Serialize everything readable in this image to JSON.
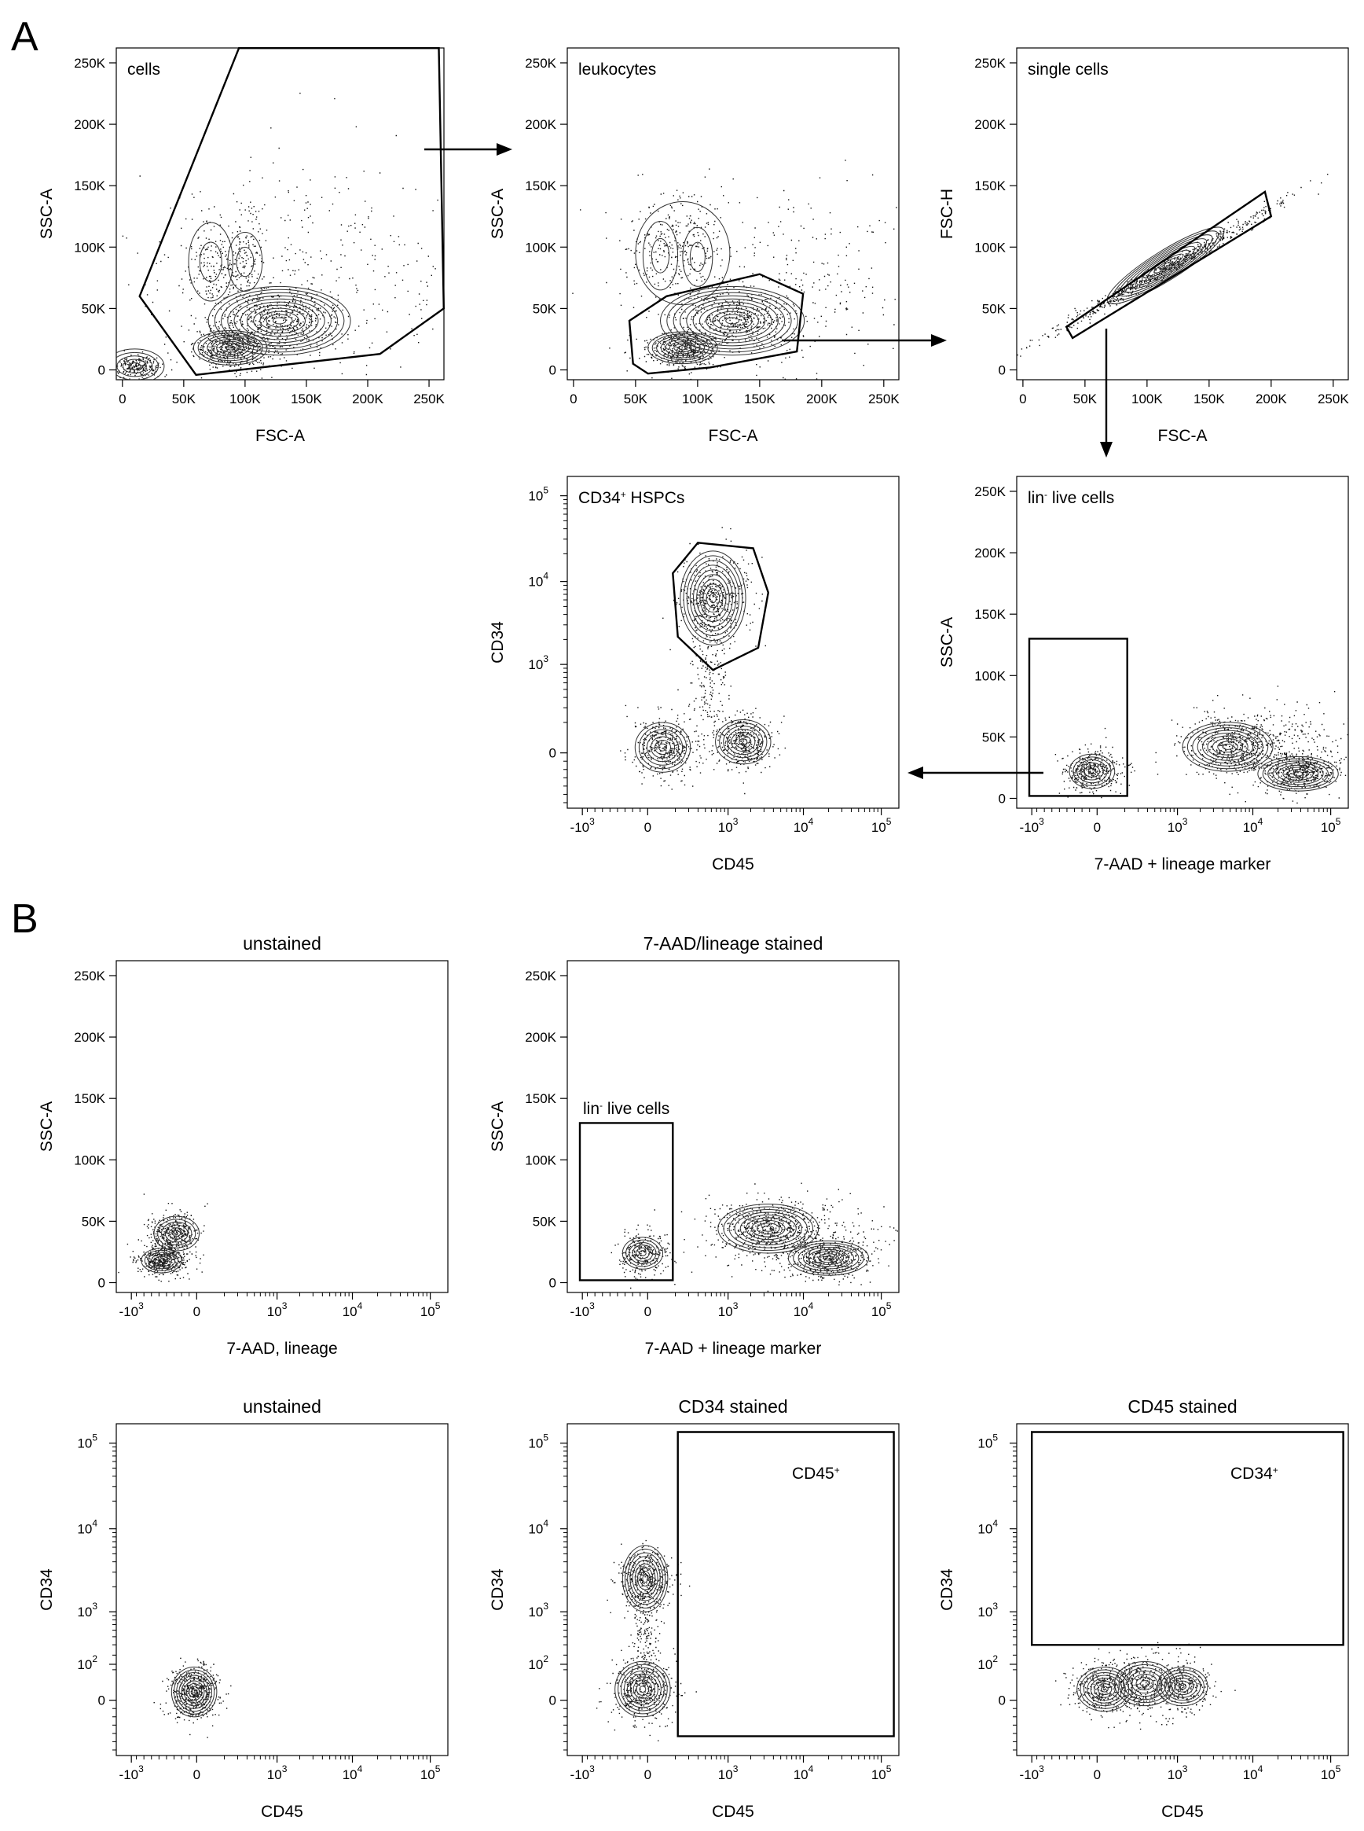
{
  "panel_letters": [
    "A",
    "B"
  ],
  "chart_data": [
    {
      "type": "scatter",
      "panel": "A",
      "title": "",
      "gate_label": "cells",
      "gate_label_sup": "",
      "gate_label_rest": "",
      "xlabel": "FSC-A",
      "ylabel": "SSC-A",
      "x_scale": "linear",
      "y_scale": "linear",
      "xlim": [
        -5000,
        262144
      ],
      "ylim": [
        -8000,
        262144
      ],
      "x_ticks": [
        [
          "0"
        ],
        [
          "50K"
        ],
        [
          "100K"
        ],
        [
          "150K"
        ],
        [
          "200K"
        ],
        [
          "250K"
        ]
      ],
      "y_ticks": [
        [
          "0"
        ],
        [
          "50K"
        ],
        [
          "100K"
        ],
        [
          "150K"
        ],
        [
          "200K"
        ],
        [
          "250K"
        ]
      ],
      "populations": [
        {
          "x": 90000,
          "y": 18000,
          "sx": 16000,
          "sy": 9000,
          "n": 500
        },
        {
          "x": 130000,
          "y": 40000,
          "sx": 26000,
          "sy": 13000,
          "n": 500
        },
        {
          "x": 75000,
          "y": 88000,
          "sx": 10000,
          "sy": 22000,
          "n": 160
        },
        {
          "x": 100000,
          "y": 88000,
          "sx": 8000,
          "sy": 20000,
          "n": 130
        },
        {
          "x": 12000,
          "y": 3000,
          "sx": 10000,
          "sy": 4000,
          "n": 220
        },
        {
          "x": 150000,
          "y": 80000,
          "sx": 70000,
          "sy": 50000,
          "n": 380
        }
      ],
      "contours": [
        {
          "x": 88000,
          "y": 18000,
          "rx": 30000,
          "ry": 14000,
          "levels": 8
        },
        {
          "x": 128000,
          "y": 40000,
          "rx": 58000,
          "ry": 28000,
          "levels": 11
        },
        {
          "x": 72000,
          "y": 88000,
          "rx": 18000,
          "ry": 32000,
          "levels": 2
        },
        {
          "x": 100000,
          "y": 88000,
          "rx": 14000,
          "ry": 24000,
          "levels": 2
        },
        {
          "x": 10000,
          "y": 3000,
          "rx": 24000,
          "ry": 14000,
          "levels": 5
        }
      ],
      "gate": [
        [
          14000,
          60000
        ],
        [
          95000,
          262000
        ],
        [
          258000,
          262000
        ],
        [
          262000,
          50000
        ],
        [
          210000,
          13000
        ],
        [
          60000,
          -4000
        ]
      ]
    },
    {
      "type": "scatter",
      "panel": "A",
      "title": "",
      "gate_label": "leukocytes",
      "gate_label_sup": "",
      "gate_label_rest": "",
      "xlabel": "FSC-A",
      "ylabel": "SSC-A",
      "x_scale": "linear",
      "y_scale": "linear",
      "xlim": [
        -5000,
        262144
      ],
      "ylim": [
        -8000,
        262144
      ],
      "x_ticks": [
        [
          "0"
        ],
        [
          "50K"
        ],
        [
          "100K"
        ],
        [
          "150K"
        ],
        [
          "200K"
        ],
        [
          "250K"
        ]
      ],
      "y_ticks": [
        [
          "0"
        ],
        [
          "50K"
        ],
        [
          "100K"
        ],
        [
          "150K"
        ],
        [
          "200K"
        ],
        [
          "250K"
        ]
      ],
      "populations": [
        {
          "x": 88000,
          "y": 18000,
          "sx": 14000,
          "sy": 8000,
          "n": 450
        },
        {
          "x": 130000,
          "y": 40000,
          "sx": 25000,
          "sy": 12000,
          "n": 450
        },
        {
          "x": 85000,
          "y": 100000,
          "sx": 22000,
          "sy": 22000,
          "n": 300
        },
        {
          "x": 160000,
          "y": 70000,
          "sx": 60000,
          "sy": 40000,
          "n": 320
        }
      ],
      "contours": [
        {
          "x": 88000,
          "y": 18000,
          "rx": 28000,
          "ry": 13000,
          "levels": 8
        },
        {
          "x": 128000,
          "y": 40000,
          "rx": 58000,
          "ry": 28000,
          "levels": 11
        },
        {
          "x": 70000,
          "y": 93000,
          "rx": 14000,
          "ry": 28000,
          "levels": 2
        },
        {
          "x": 100000,
          "y": 92000,
          "rx": 12000,
          "ry": 24000,
          "levels": 2
        },
        {
          "x": 88000,
          "y": 95000,
          "rx": 38000,
          "ry": 42000,
          "levels": 1
        }
      ],
      "gate": [
        [
          48000,
          5000
        ],
        [
          45000,
          40000
        ],
        [
          75000,
          60000
        ],
        [
          150000,
          78000
        ],
        [
          185000,
          62000
        ],
        [
          180000,
          15000
        ],
        [
          110000,
          2000
        ],
        [
          60000,
          -3000
        ]
      ]
    },
    {
      "type": "scatter",
      "panel": "A",
      "title": "",
      "gate_label": "single cells",
      "gate_label_sup": "",
      "gate_label_rest": "",
      "xlabel": "FSC-A",
      "ylabel": "FSC-H",
      "x_scale": "linear",
      "y_scale": "linear",
      "xlim": [
        -5000,
        262144
      ],
      "ylim": [
        -8000,
        262144
      ],
      "x_ticks": [
        [
          "0"
        ],
        [
          "50K"
        ],
        [
          "100K"
        ],
        [
          "150K"
        ],
        [
          "200K"
        ],
        [
          "250K"
        ]
      ],
      "y_ticks": [
        [
          "0"
        ],
        [
          "50K"
        ],
        [
          "100K"
        ],
        [
          "150K"
        ],
        [
          "200K"
        ],
        [
          "250K"
        ]
      ],
      "populations": [
        {
          "x": 110000,
          "y": 80000,
          "sx": 30000,
          "sy": 22000,
          "n": 700,
          "diag": true
        }
      ],
      "contours": [
        {
          "x": 115000,
          "y": 85000,
          "rx": 55000,
          "ry": 12000,
          "levels": 10,
          "rotate": -32
        }
      ],
      "gate": [
        [
          35000,
          35000
        ],
        [
          40000,
          26000
        ],
        [
          200000,
          125000
        ],
        [
          195000,
          145000
        ]
      ]
    },
    {
      "type": "scatter",
      "panel": "A",
      "title": "",
      "gate_label": "lin",
      "gate_label_sup": "-",
      "gate_label_rest": " live cells",
      "xlabel": "7-AAD + lineage marker",
      "ylabel": "SSC-A",
      "x_scale": "biex",
      "y_scale": "linear",
      "xlim": [
        -0.32,
        1.0
      ],
      "ylim": [
        -8000,
        262144
      ],
      "x_ticks": [
        [
          "-10",
          "3"
        ],
        [
          "0"
        ],
        [
          "10",
          "3"
        ],
        [
          "10",
          "4"
        ],
        [
          "10",
          "5"
        ]
      ],
      "y_ticks": [
        [
          "0"
        ],
        [
          "50K"
        ],
        [
          "100K"
        ],
        [
          "150K"
        ],
        [
          "200K"
        ],
        [
          "250K"
        ]
      ],
      "populations": [
        {
          "x": -0.02,
          "y": 22000,
          "sx": 0.06,
          "sy": 9000,
          "n": 380
        },
        {
          "x": 0.55,
          "y": 42000,
          "sx": 0.1,
          "sy": 12000,
          "n": 500
        },
        {
          "x": 0.8,
          "y": 22000,
          "sx": 0.08,
          "sy": 8000,
          "n": 450
        },
        {
          "x": 0.75,
          "y": 45000,
          "sx": 0.2,
          "sy": 18000,
          "n": 260
        }
      ],
      "contours": [
        {
          "x": -0.02,
          "y": 22000,
          "rx": 0.09,
          "ry": 14000,
          "levels": 6
        },
        {
          "x": 0.52,
          "y": 42000,
          "rx": 0.18,
          "ry": 20000,
          "levels": 9
        },
        {
          "x": 0.8,
          "y": 20000,
          "rx": 0.16,
          "ry": 14000,
          "levels": 8
        }
      ],
      "gate": [
        [
          -0.27,
          2000
        ],
        [
          0.12,
          2000
        ],
        [
          0.12,
          130000
        ],
        [
          -0.27,
          130000
        ]
      ]
    },
    {
      "type": "scatter",
      "panel": "A",
      "title": "",
      "gate_label": "CD34",
      "gate_label_sup": "+",
      "gate_label_rest": " HSPCs",
      "xlabel": "CD45",
      "ylabel": "CD34",
      "x_scale": "biex",
      "y_scale": "biex",
      "xlim": [
        -0.32,
        1.0
      ],
      "ylim": [
        -0.2,
        1.0
      ],
      "x_ticks": [
        [
          "-10",
          "3"
        ],
        [
          "0"
        ],
        [
          "10",
          "3"
        ],
        [
          "10",
          "4"
        ],
        [
          "10",
          "5"
        ]
      ],
      "y_ticks": [
        [
          "0"
        ],
        [
          "10",
          "3"
        ],
        [
          "10",
          "4"
        ],
        [
          "10",
          "5"
        ]
      ],
      "populations": [
        {
          "x": 0.26,
          "y": 0.56,
          "sx": 0.07,
          "sy": 0.08,
          "n": 500
        },
        {
          "x": 0.06,
          "y": 0.02,
          "sx": 0.06,
          "sy": 0.06,
          "n": 380
        },
        {
          "x": 0.38,
          "y": 0.04,
          "sx": 0.06,
          "sy": 0.05,
          "n": 380
        },
        {
          "x": 0.24,
          "y": 0.25,
          "sx": 0.04,
          "sy": 0.1,
          "n": 160
        }
      ],
      "contours": [
        {
          "x": 0.26,
          "y": 0.56,
          "rx": 0.13,
          "ry": 0.17,
          "levels": 10
        },
        {
          "x": 0.06,
          "y": 0.02,
          "rx": 0.11,
          "ry": 0.09,
          "levels": 7
        },
        {
          "x": 0.38,
          "y": 0.04,
          "rx": 0.11,
          "ry": 0.08,
          "levels": 7
        }
      ],
      "gate": [
        [
          0.1,
          0.65
        ],
        [
          0.2,
          0.76
        ],
        [
          0.42,
          0.74
        ],
        [
          0.48,
          0.58
        ],
        [
          0.44,
          0.38
        ],
        [
          0.26,
          0.3
        ],
        [
          0.12,
          0.42
        ]
      ]
    },
    {
      "type": "scatter",
      "panel": "B",
      "title": "unstained",
      "gate_label": "",
      "gate_label_sup": "",
      "gate_label_rest": "",
      "xlabel": "7-AAD, lineage",
      "ylabel": "SSC-A",
      "x_scale": "biex",
      "y_scale": "linear",
      "xlim": [
        -0.32,
        1.0
      ],
      "ylim": [
        -8000,
        262144
      ],
      "x_ticks": [
        [
          "-10",
          "3"
        ],
        [
          "0"
        ],
        [
          "10",
          "3"
        ],
        [
          "10",
          "4"
        ],
        [
          "10",
          "5"
        ]
      ],
      "y_ticks": [
        [
          "0"
        ],
        [
          "50K"
        ],
        [
          "100K"
        ],
        [
          "150K"
        ],
        [
          "200K"
        ],
        [
          "250K"
        ]
      ],
      "populations": [
        {
          "x": -0.1,
          "y": 40000,
          "sx": 0.05,
          "sy": 9000,
          "n": 420
        },
        {
          "x": -0.14,
          "y": 18000,
          "sx": 0.05,
          "sy": 6000,
          "n": 380
        }
      ],
      "contours": [
        {
          "x": -0.08,
          "y": 40000,
          "rx": 0.09,
          "ry": 14000,
          "levels": 6
        },
        {
          "x": -0.14,
          "y": 18000,
          "rx": 0.08,
          "ry": 10000,
          "levels": 6
        }
      ],
      "gate": []
    },
    {
      "type": "scatter",
      "panel": "B",
      "title": "7-AAD/lineage stained",
      "gate_label": "lin",
      "gate_label_sup": "-",
      "gate_label_rest": " live cells",
      "xlabel": "7-AAD + lineage marker",
      "ylabel": "SSC-A",
      "x_scale": "biex",
      "y_scale": "linear",
      "xlim": [
        -0.32,
        1.0
      ],
      "ylim": [
        -8000,
        262144
      ],
      "x_ticks": [
        [
          "-10",
          "3"
        ],
        [
          "0"
        ],
        [
          "10",
          "3"
        ],
        [
          "10",
          "4"
        ],
        [
          "10",
          "5"
        ]
      ],
      "y_ticks": [
        [
          "0"
        ],
        [
          "50K"
        ],
        [
          "100K"
        ],
        [
          "150K"
        ],
        [
          "200K"
        ],
        [
          "250K"
        ]
      ],
      "populations": [
        {
          "x": -0.02,
          "y": 24000,
          "sx": 0.05,
          "sy": 9000,
          "n": 260
        },
        {
          "x": 0.48,
          "y": 44000,
          "sx": 0.1,
          "sy": 12000,
          "n": 500
        },
        {
          "x": 0.72,
          "y": 20000,
          "sx": 0.08,
          "sy": 8000,
          "n": 450
        },
        {
          "x": 0.6,
          "y": 40000,
          "sx": 0.2,
          "sy": 16000,
          "n": 260
        }
      ],
      "contours": [
        {
          "x": -0.02,
          "y": 24000,
          "rx": 0.08,
          "ry": 13000,
          "levels": 6
        },
        {
          "x": 0.48,
          "y": 44000,
          "rx": 0.2,
          "ry": 20000,
          "levels": 9
        },
        {
          "x": 0.72,
          "y": 20000,
          "rx": 0.16,
          "ry": 14000,
          "levels": 8
        }
      ],
      "gate": [
        [
          -0.27,
          2000
        ],
        [
          0.1,
          2000
        ],
        [
          0.1,
          130000
        ],
        [
          -0.27,
          130000
        ]
      ]
    },
    {
      "type": "scatter",
      "panel": "B",
      "title": "unstained",
      "gate_label": "",
      "gate_label_sup": "",
      "gate_label_rest": "",
      "xlabel": "CD45",
      "ylabel": "CD34",
      "x_scale": "biex",
      "y_scale": "biex",
      "xlim": [
        -0.32,
        1.0
      ],
      "ylim": [
        -0.2,
        1.0
      ],
      "x_ticks": [
        [
          "-10",
          "3"
        ],
        [
          "0"
        ],
        [
          "10",
          "3"
        ],
        [
          "10",
          "4"
        ],
        [
          "10",
          "5"
        ]
      ],
      "y_ticks": [
        [
          "0"
        ],
        [
          "10",
          "2"
        ],
        [
          "10",
          "3"
        ],
        [
          "10",
          "4"
        ],
        [
          "10",
          "5"
        ]
      ],
      "populations": [
        {
          "x": -0.01,
          "y": 0.03,
          "sx": 0.05,
          "sy": 0.05,
          "n": 500
        }
      ],
      "contours": [
        {
          "x": -0.01,
          "y": 0.03,
          "rx": 0.09,
          "ry": 0.09,
          "levels": 9
        }
      ],
      "gate": []
    },
    {
      "type": "scatter",
      "panel": "B",
      "title": "CD34 stained",
      "gate_label": "CD45",
      "gate_label_sup": "+",
      "gate_label_rest": "",
      "xlabel": "CD45",
      "ylabel": "CD34",
      "x_scale": "biex",
      "y_scale": "biex",
      "xlim": [
        -0.32,
        1.0
      ],
      "ylim": [
        -0.2,
        1.0
      ],
      "x_ticks": [
        [
          "-10",
          "3"
        ],
        [
          "0"
        ],
        [
          "10",
          "3"
        ],
        [
          "10",
          "4"
        ],
        [
          "10",
          "5"
        ]
      ],
      "y_ticks": [
        [
          "0"
        ],
        [
          "10",
          "2"
        ],
        [
          "10",
          "3"
        ],
        [
          "10",
          "4"
        ],
        [
          "10",
          "5"
        ]
      ],
      "populations": [
        {
          "x": -0.01,
          "y": 0.44,
          "sx": 0.05,
          "sy": 0.06,
          "n": 420
        },
        {
          "x": -0.02,
          "y": 0.04,
          "sx": 0.06,
          "sy": 0.06,
          "n": 420
        },
        {
          "x": -0.01,
          "y": 0.24,
          "sx": 0.03,
          "sy": 0.08,
          "n": 160
        }
      ],
      "contours": [
        {
          "x": -0.01,
          "y": 0.44,
          "rx": 0.09,
          "ry": 0.12,
          "levels": 9
        },
        {
          "x": -0.02,
          "y": 0.04,
          "rx": 0.11,
          "ry": 0.1,
          "levels": 9
        }
      ],
      "gate": [
        [
          0.12,
          -0.13
        ],
        [
          0.98,
          -0.13
        ],
        [
          0.98,
          0.97
        ],
        [
          0.12,
          0.97
        ]
      ]
    },
    {
      "type": "scatter",
      "panel": "B",
      "title": "CD45 stained",
      "gate_label": "CD34",
      "gate_label_sup": "+",
      "gate_label_rest": "",
      "xlabel": "CD45",
      "ylabel": "CD34",
      "x_scale": "biex",
      "y_scale": "biex",
      "xlim": [
        -0.32,
        1.0
      ],
      "ylim": [
        -0.2,
        1.0
      ],
      "x_ticks": [
        [
          "-10",
          "3"
        ],
        [
          "0"
        ],
        [
          "10",
          "3"
        ],
        [
          "10",
          "4"
        ],
        [
          "10",
          "5"
        ]
      ],
      "y_ticks": [
        [
          "0"
        ],
        [
          "10",
          "2"
        ],
        [
          "10",
          "3"
        ],
        [
          "10",
          "4"
        ],
        [
          "10",
          "5"
        ]
      ],
      "populations": [
        {
          "x": 0.02,
          "y": 0.04,
          "sx": 0.06,
          "sy": 0.05,
          "n": 350
        },
        {
          "x": 0.17,
          "y": 0.06,
          "sx": 0.06,
          "sy": 0.05,
          "n": 300
        },
        {
          "x": 0.33,
          "y": 0.05,
          "sx": 0.06,
          "sy": 0.05,
          "n": 320
        }
      ],
      "contours": [
        {
          "x": 0.03,
          "y": 0.04,
          "rx": 0.11,
          "ry": 0.08,
          "levels": 8
        },
        {
          "x": 0.19,
          "y": 0.06,
          "rx": 0.12,
          "ry": 0.08,
          "levels": 7
        },
        {
          "x": 0.34,
          "y": 0.05,
          "rx": 0.1,
          "ry": 0.07,
          "levels": 7
        }
      ],
      "gate": [
        [
          -0.26,
          0.2
        ],
        [
          0.98,
          0.2
        ],
        [
          0.98,
          0.97
        ],
        [
          -0.26,
          0.97
        ]
      ]
    }
  ]
}
